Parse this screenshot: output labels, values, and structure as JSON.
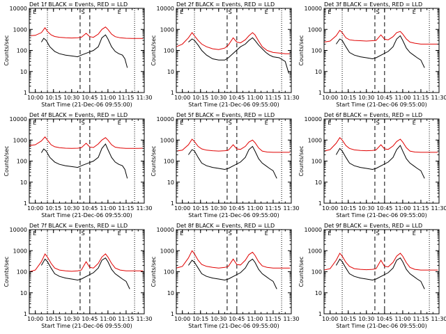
{
  "figure": {
    "title_template": "Det {n}f BLACK = Events, RED = LLD",
    "xlabel": "Start Time (21-Dec-06 09:55:00)",
    "ylabel": "Counts/sec"
  },
  "colors": {
    "events": "#000000",
    "lld": "#e00000",
    "axes": "#000000"
  },
  "chart_data": {
    "type": "line",
    "yscale": "log",
    "ylim": [
      1,
      10000
    ],
    "yticks": [
      1,
      10,
      100,
      1000,
      10000
    ],
    "ytick_labels": [
      "1",
      "10",
      "100",
      "1000",
      "10000"
    ],
    "xlim": [
      "09:55",
      "11:30"
    ],
    "xticks": [
      "10:00",
      "10:15",
      "10:30",
      "10:45",
      "11:00",
      "11:15",
      "11:30"
    ],
    "xtick_labels": [
      "10:00",
      "10:15",
      "10:30",
      "10:45",
      "11:00",
      "11:15",
      "11:30"
    ],
    "vertical_markers": {
      "dotted": [
        "10:10",
        "11:22"
      ],
      "dashed": [
        "10:37",
        "10:45"
      ],
      "letters": [
        {
          "text": "E",
          "at": "09:58"
        },
        {
          "text": "S",
          "at": "10:38"
        },
        {
          "text": "E",
          "at": "11:08"
        }
      ]
    },
    "detectors": [
      "1",
      "2",
      "3",
      "4",
      "5",
      "6",
      "7",
      "8",
      "9"
    ],
    "panels": [
      {
        "detector": "1",
        "lld": {
          "x": [
            "09:55",
            "10:00",
            "10:05",
            "10:08",
            "10:10",
            "10:13",
            "10:16",
            "10:20",
            "10:25",
            "10:30",
            "10:35",
            "10:38",
            "10:42",
            "10:45",
            "10:48",
            "10:52",
            "10:55",
            "10:58",
            "11:00",
            "11:03",
            "11:06",
            "11:10",
            "11:15",
            "11:20",
            "11:25",
            "11:29"
          ],
          "y": [
            500,
            520,
            700,
            1200,
            800,
            550,
            460,
            420,
            400,
            390,
            400,
            420,
            650,
            450,
            420,
            600,
            1000,
            1300,
            1000,
            600,
            450,
            400,
            380,
            370,
            370,
            370
          ]
        },
        "events": {
          "x": [
            "10:05",
            "10:07",
            "10:09",
            "10:12",
            "10:16",
            "10:20",
            "10:25",
            "10:30",
            "10:35",
            "10:38",
            "10:48",
            "10:52",
            "10:55",
            "10:58",
            "11:00",
            "11:03",
            "11:06",
            "11:09",
            "11:12",
            "11:14",
            "11:16"
          ],
          "y": [
            250,
            380,
            300,
            150,
            90,
            70,
            60,
            55,
            50,
            60,
            100,
            150,
            400,
            550,
            350,
            150,
            90,
            70,
            60,
            40,
            15
          ]
        }
      },
      {
        "detector": "2",
        "lld": {
          "x": [
            "09:55",
            "10:00",
            "10:05",
            "10:08",
            "10:10",
            "10:13",
            "10:16",
            "10:20",
            "10:25",
            "10:30",
            "10:35",
            "10:38",
            "10:42",
            "10:45",
            "10:48",
            "10:52",
            "10:55",
            "10:58",
            "11:00",
            "11:03",
            "11:06",
            "11:10",
            "11:15",
            "11:20",
            "11:25",
            "11:29"
          ],
          "y": [
            150,
            200,
            400,
            700,
            500,
            300,
            200,
            150,
            120,
            110,
            130,
            180,
            400,
            250,
            230,
            320,
            500,
            700,
            550,
            280,
            150,
            100,
            80,
            75,
            70,
            70
          ]
        },
        "events": {
          "x": [
            "10:05",
            "10:08",
            "10:10",
            "10:13",
            "10:16",
            "10:20",
            "10:25",
            "10:30",
            "10:35",
            "10:38",
            "10:48",
            "10:52",
            "10:55",
            "10:58",
            "11:00",
            "11:03",
            "11:06",
            "11:09",
            "11:12",
            "11:15",
            "11:20",
            "11:25",
            "11:28"
          ],
          "y": [
            250,
            350,
            300,
            180,
            100,
            60,
            40,
            35,
            35,
            45,
            150,
            200,
            300,
            400,
            300,
            180,
            120,
            80,
            60,
            50,
            45,
            30,
            8
          ]
        }
      },
      {
        "detector": "3",
        "lld": {
          "x": [
            "09:55",
            "10:00",
            "10:05",
            "10:08",
            "10:10",
            "10:13",
            "10:16",
            "10:20",
            "10:25",
            "10:30",
            "10:35",
            "10:38",
            "10:42",
            "10:45",
            "10:48",
            "10:52",
            "10:55",
            "10:58",
            "11:00",
            "11:03",
            "11:06",
            "11:10",
            "11:15",
            "11:20",
            "11:25",
            "11:29"
          ],
          "y": [
            250,
            280,
            500,
            900,
            700,
            400,
            320,
            300,
            290,
            280,
            290,
            300,
            550,
            340,
            320,
            450,
            700,
            800,
            600,
            350,
            250,
            220,
            200,
            200,
            200,
            200
          ]
        },
        "events": {
          "x": [
            "10:05",
            "10:08",
            "10:10",
            "10:13",
            "10:16",
            "10:20",
            "10:25",
            "10:30",
            "10:35",
            "10:38",
            "10:48",
            "10:52",
            "10:55",
            "10:58",
            "11:00",
            "11:03",
            "11:06",
            "11:09",
            "11:12",
            "11:15",
            "11:18"
          ],
          "y": [
            200,
            350,
            300,
            150,
            80,
            60,
            50,
            45,
            40,
            45,
            90,
            150,
            350,
            500,
            300,
            130,
            80,
            60,
            45,
            35,
            15
          ]
        }
      },
      {
        "detector": "4",
        "lld": {
          "x": [
            "09:55",
            "10:00",
            "10:05",
            "10:08",
            "10:10",
            "10:13",
            "10:16",
            "10:20",
            "10:25",
            "10:30",
            "10:35",
            "10:38",
            "10:42",
            "10:45",
            "10:48",
            "10:52",
            "10:55",
            "10:58",
            "11:00",
            "11:03",
            "11:06",
            "11:10",
            "11:15",
            "11:20",
            "11:25",
            "11:29"
          ],
          "y": [
            550,
            600,
            900,
            1400,
            1000,
            600,
            480,
            430,
            410,
            400,
            410,
            430,
            700,
            470,
            440,
            650,
            1000,
            1300,
            1000,
            600,
            460,
            420,
            400,
            400,
            400,
            410
          ]
        },
        "events": {
          "x": [
            "10:05",
            "10:07",
            "10:09",
            "10:12",
            "10:16",
            "10:20",
            "10:25",
            "10:30",
            "10:35",
            "10:38",
            "10:48",
            "10:52",
            "10:55",
            "10:58",
            "11:00",
            "11:03",
            "11:06",
            "11:09",
            "11:12",
            "11:14",
            "11:16"
          ],
          "y": [
            250,
            380,
            300,
            150,
            90,
            70,
            60,
            55,
            50,
            60,
            100,
            150,
            400,
            650,
            350,
            150,
            90,
            70,
            60,
            40,
            15
          ]
        }
      },
      {
        "detector": "5",
        "lld": {
          "x": [
            "09:55",
            "10:00",
            "10:05",
            "10:08",
            "10:10",
            "10:13",
            "10:16",
            "10:20",
            "10:25",
            "10:30",
            "10:35",
            "10:38",
            "10:42",
            "10:45",
            "10:48",
            "10:52",
            "10:55",
            "10:58",
            "11:00",
            "11:03",
            "11:06",
            "11:10",
            "11:15",
            "11:20",
            "11:25",
            "11:29"
          ],
          "y": [
            300,
            330,
            600,
            1100,
            850,
            500,
            380,
            330,
            310,
            300,
            310,
            330,
            600,
            380,
            360,
            500,
            800,
            1000,
            750,
            420,
            300,
            270,
            260,
            260,
            260,
            260
          ]
        },
        "events": {
          "x": [
            "10:05",
            "10:08",
            "10:10",
            "10:13",
            "10:16",
            "10:20",
            "10:25",
            "10:30",
            "10:35",
            "10:38",
            "10:48",
            "10:52",
            "10:55",
            "10:58",
            "11:00",
            "11:03",
            "11:06",
            "11:09",
            "11:12",
            "11:15",
            "11:18"
          ],
          "y": [
            200,
            350,
            300,
            150,
            80,
            60,
            50,
            45,
            40,
            45,
            90,
            150,
            350,
            500,
            300,
            130,
            80,
            60,
            45,
            35,
            15
          ]
        }
      },
      {
        "detector": "6",
        "lld": {
          "x": [
            "09:55",
            "10:00",
            "10:05",
            "10:08",
            "10:10",
            "10:13",
            "10:16",
            "10:20",
            "10:25",
            "10:30",
            "10:35",
            "10:38",
            "10:42",
            "10:45",
            "10:48",
            "10:52",
            "10:55",
            "10:58",
            "11:00",
            "11:03",
            "11:06",
            "11:10",
            "11:15",
            "11:20",
            "11:25",
            "11:29"
          ],
          "y": [
            300,
            350,
            700,
            1300,
            1000,
            550,
            400,
            340,
            320,
            310,
            320,
            340,
            600,
            380,
            360,
            520,
            850,
            1100,
            800,
            430,
            300,
            270,
            260,
            260,
            260,
            260
          ]
        },
        "events": {
          "x": [
            "10:05",
            "10:08",
            "10:10",
            "10:13",
            "10:16",
            "10:20",
            "10:25",
            "10:30",
            "10:35",
            "10:38",
            "10:48",
            "10:52",
            "10:55",
            "10:58",
            "11:00",
            "11:03",
            "11:06",
            "11:09",
            "11:12",
            "11:15",
            "11:18"
          ],
          "y": [
            200,
            400,
            300,
            150,
            80,
            60,
            50,
            45,
            40,
            45,
            90,
            150,
            350,
            550,
            300,
            130,
            80,
            60,
            45,
            35,
            15
          ]
        }
      },
      {
        "detector": "7",
        "lld": {
          "x": [
            "09:55",
            "10:00",
            "10:05",
            "10:08",
            "10:10",
            "10:13",
            "10:16",
            "10:20",
            "10:25",
            "10:30",
            "10:35",
            "10:38",
            "10:42",
            "10:45",
            "10:48",
            "10:52",
            "10:55",
            "10:58",
            "11:00",
            "11:03",
            "11:06",
            "11:10",
            "11:15",
            "11:20",
            "11:25",
            "11:29"
          ],
          "y": [
            100,
            120,
            300,
            700,
            500,
            250,
            150,
            120,
            110,
            105,
            110,
            120,
            300,
            160,
            150,
            250,
            500,
            700,
            500,
            250,
            150,
            120,
            110,
            110,
            110,
            110
          ]
        },
        "events": {
          "x": [
            "10:05",
            "10:08",
            "10:10",
            "10:13",
            "10:16",
            "10:20",
            "10:25",
            "10:30",
            "10:35",
            "10:38",
            "10:48",
            "10:52",
            "10:55",
            "10:58",
            "11:00",
            "11:03",
            "11:06",
            "11:09",
            "11:12",
            "11:15",
            "11:18"
          ],
          "y": [
            200,
            400,
            300,
            150,
            80,
            60,
            50,
            45,
            40,
            45,
            90,
            150,
            350,
            450,
            300,
            130,
            80,
            60,
            45,
            35,
            15
          ]
        }
      },
      {
        "detector": "8",
        "lld": {
          "x": [
            "09:55",
            "10:00",
            "10:05",
            "10:08",
            "10:10",
            "10:13",
            "10:16",
            "10:20",
            "10:25",
            "10:30",
            "10:35",
            "10:38",
            "10:42",
            "10:45",
            "10:48",
            "10:52",
            "10:55",
            "10:58",
            "11:00",
            "11:03",
            "11:06",
            "11:10",
            "11:15",
            "11:20",
            "11:25",
            "11:29"
          ],
          "y": [
            150,
            180,
            450,
            1000,
            700,
            350,
            220,
            180,
            160,
            150,
            160,
            180,
            400,
            220,
            210,
            350,
            650,
            850,
            600,
            300,
            190,
            160,
            150,
            150,
            150,
            150
          ]
        },
        "events": {
          "x": [
            "10:05",
            "10:08",
            "10:10",
            "10:13",
            "10:16",
            "10:20",
            "10:25",
            "10:30",
            "10:35",
            "10:38",
            "10:48",
            "10:52",
            "10:55",
            "10:58",
            "11:00",
            "11:03",
            "11:06",
            "11:09",
            "11:12",
            "11:15",
            "11:18"
          ],
          "y": [
            200,
            350,
            280,
            150,
            80,
            60,
            50,
            45,
            40,
            45,
            90,
            150,
            300,
            400,
            280,
            130,
            80,
            60,
            45,
            35,
            15
          ]
        }
      },
      {
        "detector": "9",
        "lld": {
          "x": [
            "09:55",
            "10:00",
            "10:05",
            "10:08",
            "10:10",
            "10:13",
            "10:16",
            "10:20",
            "10:25",
            "10:30",
            "10:35",
            "10:38",
            "10:42",
            "10:45",
            "10:48",
            "10:52",
            "10:55",
            "10:58",
            "11:00",
            "11:03",
            "11:06",
            "11:10",
            "11:15",
            "11:20",
            "11:25",
            "11:29"
          ],
          "y": [
            120,
            140,
            350,
            750,
            550,
            280,
            180,
            140,
            130,
            125,
            130,
            140,
            350,
            180,
            170,
            280,
            550,
            750,
            550,
            270,
            160,
            130,
            120,
            120,
            120,
            120
          ]
        },
        "events": {
          "x": [
            "10:05",
            "10:08",
            "10:10",
            "10:13",
            "10:16",
            "10:20",
            "10:25",
            "10:30",
            "10:35",
            "10:38",
            "10:48",
            "10:52",
            "10:55",
            "10:58",
            "11:00",
            "11:03",
            "11:06",
            "11:09",
            "11:12",
            "11:15",
            "11:18"
          ],
          "y": [
            200,
            400,
            300,
            150,
            80,
            60,
            50,
            45,
            40,
            45,
            90,
            150,
            350,
            450,
            300,
            130,
            80,
            60,
            45,
            35,
            15
          ]
        }
      }
    ]
  }
}
